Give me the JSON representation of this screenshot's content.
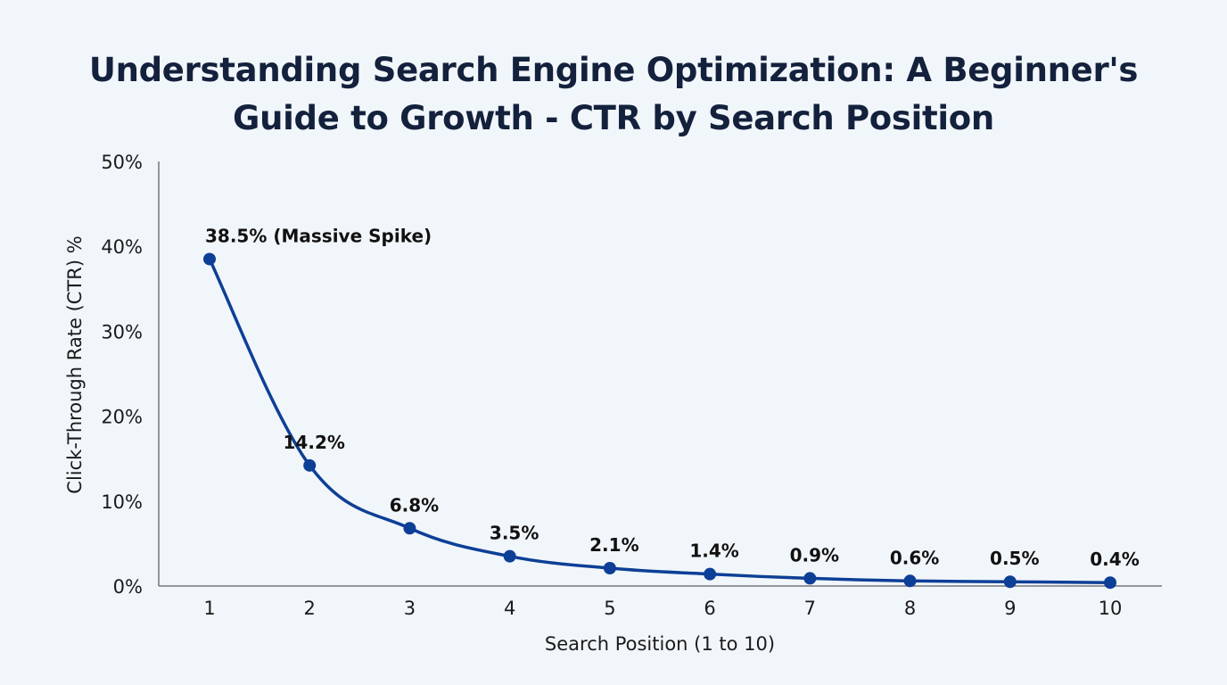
{
  "chart_data": {
    "type": "line",
    "title_lines": [
      "Understanding Search Engine Optimization: A Beginner's",
      "Guide to Growth - CTR by Search Position"
    ],
    "xlabel": "Search Position (1 to 10)",
    "ylabel": "Click-Through Rate (CTR) %",
    "x": [
      1,
      2,
      3,
      4,
      5,
      6,
      7,
      8,
      9,
      10
    ],
    "x_tick_labels": [
      "1",
      "2",
      "3",
      "4",
      "5",
      "6",
      "7",
      "8",
      "9",
      "10"
    ],
    "y_ticks": [
      0,
      10,
      20,
      30,
      40,
      50
    ],
    "y_tick_labels": [
      "0%",
      "10%",
      "20%",
      "30%",
      "40%",
      "50%"
    ],
    "ylim": [
      0,
      50
    ],
    "grid": false,
    "series": [
      {
        "values": [
          38.5,
          14.2,
          6.8,
          3.5,
          2.1,
          1.4,
          0.9,
          0.6,
          0.5,
          0.4
        ],
        "data_labels": [
          "38.5% (Massive Spike)",
          "14.2%",
          "6.8%",
          "3.5%",
          "2.1%",
          "1.4%",
          "0.9%",
          "0.6%",
          "0.5%",
          "0.4%"
        ],
        "color": "#0d3f96"
      }
    ]
  }
}
